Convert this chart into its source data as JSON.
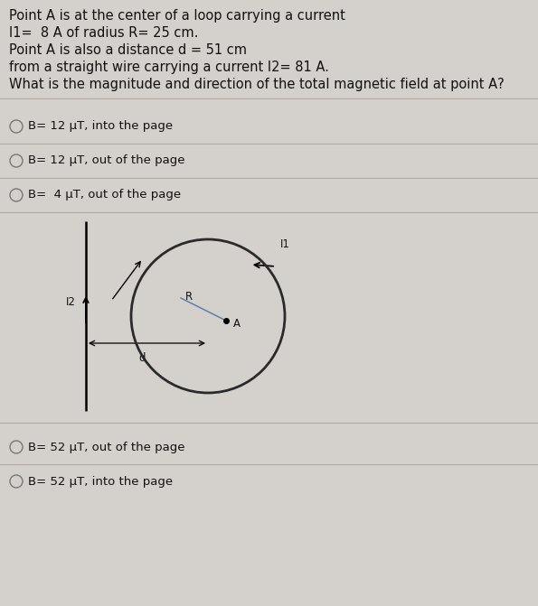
{
  "background_color": "#d4d0cc",
  "title_lines": [
    "Point A is at the center of a loop carrying a current",
    "I1=  8 A of radius R= 25 cm.",
    "Point A is also a distance d = 51 cm",
    "from a straight wire carrying a current I2= 81 A.",
    "What is the magnitude and direction of the total magnetic field at point A?"
  ],
  "options": [
    "B= 12 μT, into the page",
    "B= 12 μT, out of the page",
    "B=  4 μT, out of the page",
    "B= 52 μT, out of the page",
    "B= 52 μT, into the page"
  ],
  "text_color": "#111111",
  "option_circle_color": "#777777",
  "font_size_text": 10.5,
  "font_size_option": 9.5,
  "font_size_diagram": 8.5,
  "separator_color": "#b0aba5"
}
